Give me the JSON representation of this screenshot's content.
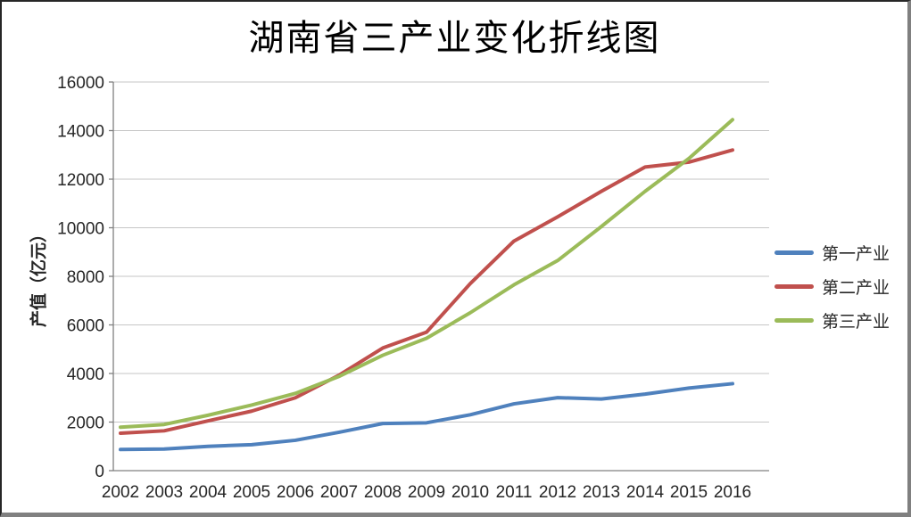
{
  "title": "湖南省三产业变化折线图",
  "chart_data": {
    "type": "line",
    "title": "湖南省三产业变化折线图",
    "xlabel": "",
    "ylabel": "产值（亿元）",
    "categories": [
      "2002",
      "2003",
      "2004",
      "2005",
      "2006",
      "2007",
      "2008",
      "2009",
      "2010",
      "2011",
      "2012",
      "2013",
      "2014",
      "2015",
      "2016"
    ],
    "series": [
      {
        "name": "第一产业",
        "color": "#4F81BD",
        "values": [
          870,
          890,
          1000,
          1070,
          1250,
          1580,
          1940,
          1970,
          2300,
          2750,
          3005,
          2950,
          3150,
          3400,
          3580
        ]
      },
      {
        "name": "第二产业",
        "color": "#C0504D",
        "values": [
          1540,
          1640,
          2050,
          2450,
          3000,
          3930,
          5050,
          5700,
          7700,
          9450,
          10450,
          11500,
          12500,
          12700,
          13200
        ]
      },
      {
        "name": "第三产业",
        "color": "#9BBB59",
        "values": [
          1790,
          1900,
          2280,
          2700,
          3180,
          3880,
          4750,
          5450,
          6500,
          7650,
          8650,
          10050,
          11500,
          12850,
          14450
        ]
      }
    ],
    "ylim": [
      0,
      16000
    ],
    "ytick_step": 2000,
    "grid": true,
    "legend_position": "right",
    "colors": {
      "gridline": "#C6C6C6",
      "axis": "#808080",
      "tick_text": "#262626"
    }
  }
}
